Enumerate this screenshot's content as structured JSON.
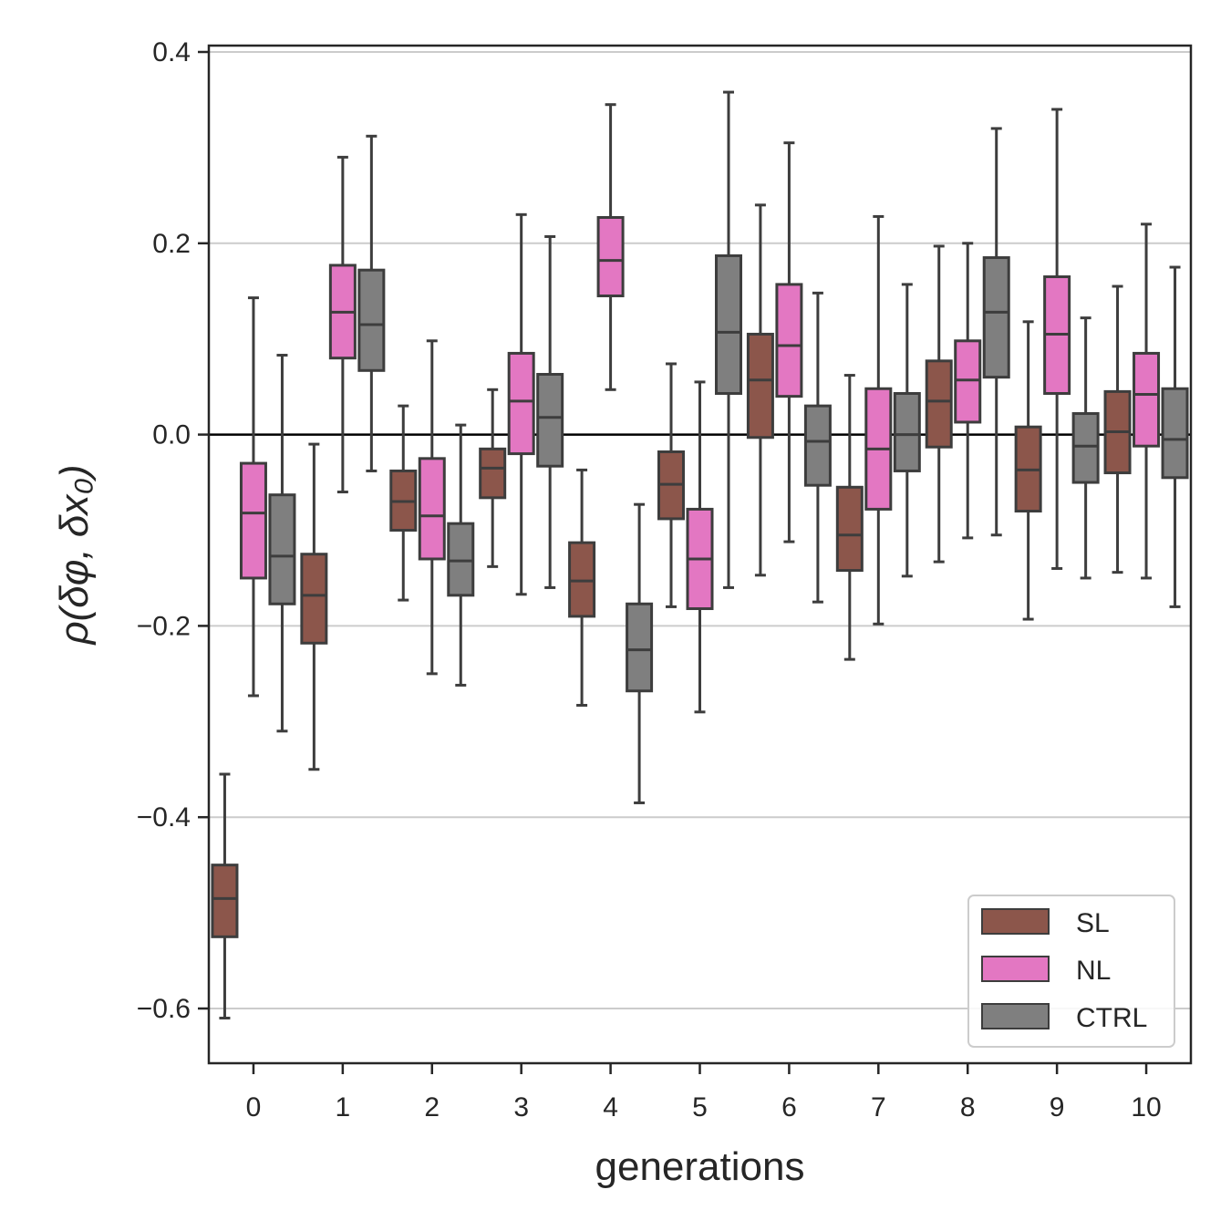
{
  "chart_data": {
    "type": "box",
    "xlabel": "generations",
    "ylabel": "ρ(δφ, δx₀)",
    "categories": [
      "0",
      "1",
      "2",
      "3",
      "4",
      "5",
      "6",
      "7",
      "8",
      "9",
      "10"
    ],
    "ylim": [
      -0.66,
      0.405
    ],
    "yticks": [
      0.4,
      0.2,
      0.0,
      -0.2,
      -0.4,
      -0.6
    ],
    "ytick_labels": [
      "0.4",
      "0.2",
      "0.0",
      "−0.2",
      "−0.4",
      "−0.6"
    ],
    "grid": "horizontal",
    "reference_line": 0.0,
    "legend_position": "lower-right",
    "series": [
      {
        "name": "SL",
        "color": "#8c564b",
        "boxes": [
          {
            "whislo": -0.61,
            "q1": -0.525,
            "med": -0.485,
            "q3": -0.45,
            "whishi": -0.355
          },
          {
            "whislo": -0.35,
            "q1": -0.218,
            "med": -0.168,
            "q3": -0.125,
            "whishi": -0.01
          },
          {
            "whislo": -0.173,
            "q1": -0.1,
            "med": -0.07,
            "q3": -0.038,
            "whishi": 0.03
          },
          {
            "whislo": -0.138,
            "q1": -0.066,
            "med": -0.035,
            "q3": -0.015,
            "whishi": 0.047
          },
          {
            "whislo": -0.283,
            "q1": -0.19,
            "med": -0.153,
            "q3": -0.113,
            "whishi": -0.037
          },
          {
            "whislo": -0.18,
            "q1": -0.088,
            "med": -0.052,
            "q3": -0.018,
            "whishi": 0.074
          },
          {
            "whislo": -0.147,
            "q1": -0.003,
            "med": 0.057,
            "q3": 0.105,
            "whishi": 0.24
          },
          {
            "whislo": -0.235,
            "q1": -0.142,
            "med": -0.105,
            "q3": -0.055,
            "whishi": 0.062
          },
          {
            "whislo": -0.133,
            "q1": -0.013,
            "med": 0.035,
            "q3": 0.077,
            "whishi": 0.197
          },
          {
            "whislo": -0.193,
            "q1": -0.08,
            "med": -0.037,
            "q3": 0.008,
            "whishi": 0.118
          },
          {
            "whislo": -0.144,
            "q1": -0.04,
            "med": 0.003,
            "q3": 0.045,
            "whishi": 0.155
          }
        ]
      },
      {
        "name": "NL",
        "color": "#e377c2",
        "boxes": [
          {
            "whislo": -0.273,
            "q1": -0.15,
            "med": -0.082,
            "q3": -0.03,
            "whishi": 0.143
          },
          {
            "whislo": -0.06,
            "q1": 0.08,
            "med": 0.128,
            "q3": 0.177,
            "whishi": 0.29
          },
          {
            "whislo": -0.25,
            "q1": -0.13,
            "med": -0.085,
            "q3": -0.025,
            "whishi": 0.098
          },
          {
            "whislo": -0.167,
            "q1": -0.02,
            "med": 0.035,
            "q3": 0.085,
            "whishi": 0.23
          },
          {
            "whislo": 0.047,
            "q1": 0.145,
            "med": 0.182,
            "q3": 0.227,
            "whishi": 0.345
          },
          {
            "whislo": -0.29,
            "q1": -0.182,
            "med": -0.13,
            "q3": -0.078,
            "whishi": 0.055
          },
          {
            "whislo": -0.112,
            "q1": 0.04,
            "med": 0.093,
            "q3": 0.157,
            "whishi": 0.305
          },
          {
            "whislo": -0.198,
            "q1": -0.078,
            "med": -0.015,
            "q3": 0.048,
            "whishi": 0.228
          },
          {
            "whislo": -0.108,
            "q1": 0.013,
            "med": 0.057,
            "q3": 0.098,
            "whishi": 0.2
          },
          {
            "whislo": -0.14,
            "q1": 0.043,
            "med": 0.105,
            "q3": 0.165,
            "whishi": 0.34
          },
          {
            "whislo": -0.15,
            "q1": -0.012,
            "med": 0.042,
            "q3": 0.085,
            "whishi": 0.22
          }
        ]
      },
      {
        "name": "CTRL",
        "color": "#7f7f7f",
        "boxes": [
          {
            "whislo": -0.31,
            "q1": -0.177,
            "med": -0.127,
            "q3": -0.063,
            "whishi": 0.083
          },
          {
            "whislo": -0.038,
            "q1": 0.067,
            "med": 0.115,
            "q3": 0.172,
            "whishi": 0.312
          },
          {
            "whislo": -0.262,
            "q1": -0.168,
            "med": -0.132,
            "q3": -0.093,
            "whishi": 0.01
          },
          {
            "whislo": -0.16,
            "q1": -0.033,
            "med": 0.018,
            "q3": 0.063,
            "whishi": 0.207
          },
          {
            "whislo": -0.385,
            "q1": -0.268,
            "med": -0.225,
            "q3": -0.177,
            "whishi": -0.073
          },
          {
            "whislo": -0.16,
            "q1": 0.043,
            "med": 0.107,
            "q3": 0.187,
            "whishi": 0.358
          },
          {
            "whislo": -0.175,
            "q1": -0.053,
            "med": -0.007,
            "q3": 0.03,
            "whishi": 0.148
          },
          {
            "whislo": -0.148,
            "q1": -0.038,
            "med": 0.0,
            "q3": 0.043,
            "whishi": 0.157
          },
          {
            "whislo": -0.105,
            "q1": 0.06,
            "med": 0.128,
            "q3": 0.185,
            "whishi": 0.32
          },
          {
            "whislo": -0.15,
            "q1": -0.05,
            "med": -0.012,
            "q3": 0.022,
            "whishi": 0.122
          },
          {
            "whislo": -0.18,
            "q1": -0.045,
            "med": -0.005,
            "q3": 0.048,
            "whishi": 0.175
          }
        ]
      }
    ]
  }
}
